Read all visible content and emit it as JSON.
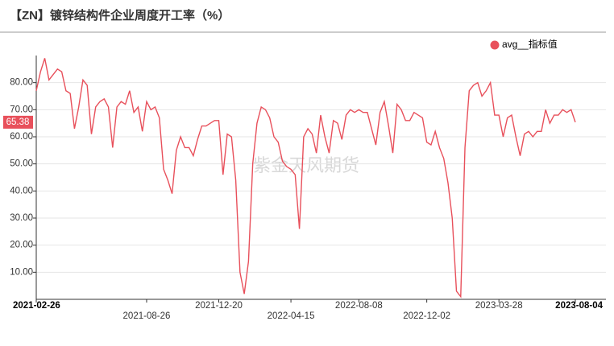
{
  "chart_data": {
    "type": "line",
    "title": "【ZN】镀锌结构件企业周度开工率（%）",
    "watermark": "紫金天风期货",
    "categories": [
      "2021-02-26",
      null,
      null,
      null,
      null,
      null,
      null,
      null,
      null,
      null,
      null,
      null,
      null,
      null,
      null,
      null,
      null,
      null,
      null,
      null,
      null,
      null,
      null,
      null,
      null,
      null,
      "2021-08-26",
      null,
      null,
      null,
      null,
      null,
      null,
      null,
      null,
      null,
      null,
      null,
      null,
      null,
      null,
      null,
      null,
      "2021-12-20",
      null,
      null,
      null,
      null,
      null,
      null,
      null,
      null,
      null,
      null,
      null,
      null,
      null,
      null,
      null,
      null,
      "2022-04-15",
      null,
      null,
      null,
      null,
      null,
      null,
      null,
      null,
      null,
      null,
      null,
      null,
      null,
      null,
      null,
      "2022-08-08",
      null,
      null,
      null,
      null,
      null,
      null,
      null,
      null,
      null,
      null,
      null,
      null,
      null,
      null,
      null,
      "2022-12-02",
      null,
      null,
      null,
      null,
      null,
      null,
      null,
      null,
      null,
      null,
      null,
      null,
      null,
      null,
      null,
      null,
      "2023-03-28",
      null,
      null,
      null,
      null,
      null,
      null,
      null,
      null,
      null,
      null,
      null,
      null,
      null,
      null,
      null,
      null,
      null,
      "2023-08-04"
    ],
    "series": [
      {
        "name": "avg__指标值",
        "color": "#e8505b",
        "values": [
          77,
          84,
          89,
          81,
          83,
          85,
          84,
          77,
          76,
          63,
          71,
          81,
          79,
          61,
          71,
          73,
          74,
          71,
          56,
          71,
          73,
          72,
          77,
          69,
          71,
          62,
          73,
          70,
          71,
          67,
          48,
          44,
          39,
          55,
          60,
          56,
          56,
          53,
          59,
          64,
          64,
          65,
          66,
          66,
          46,
          61,
          60,
          44,
          10,
          2,
          14,
          50,
          65,
          71,
          70,
          67,
          60,
          58,
          51,
          49,
          48,
          46,
          26,
          60,
          63,
          61,
          54,
          68,
          60,
          54,
          66,
          65,
          59,
          68,
          70,
          69,
          70,
          69,
          69,
          63,
          57,
          69,
          73,
          64,
          54,
          72,
          70,
          66,
          66,
          69,
          68,
          67,
          58,
          57,
          62,
          56,
          52,
          43,
          30,
          3,
          1,
          56,
          77,
          79,
          80,
          75,
          77,
          80,
          68,
          68,
          60,
          67,
          68,
          60,
          53,
          61,
          62,
          60,
          62,
          62,
          70,
          65,
          68,
          68,
          70,
          69,
          70,
          65.38
        ]
      }
    ],
    "ylim": [
      0,
      90
    ],
    "yticks": [
      {
        "value": 10,
        "label": "10.00"
      },
      {
        "value": 20,
        "label": "20.00"
      },
      {
        "value": 30,
        "label": "30.00"
      },
      {
        "value": 40,
        "label": "40.00"
      },
      {
        "value": 50,
        "label": "50.00"
      },
      {
        "value": 60,
        "label": "60.00"
      },
      {
        "value": 70,
        "label": "70.00"
      },
      {
        "value": 80,
        "label": "80.00"
      }
    ],
    "grid": true,
    "legend": "top-right"
  }
}
